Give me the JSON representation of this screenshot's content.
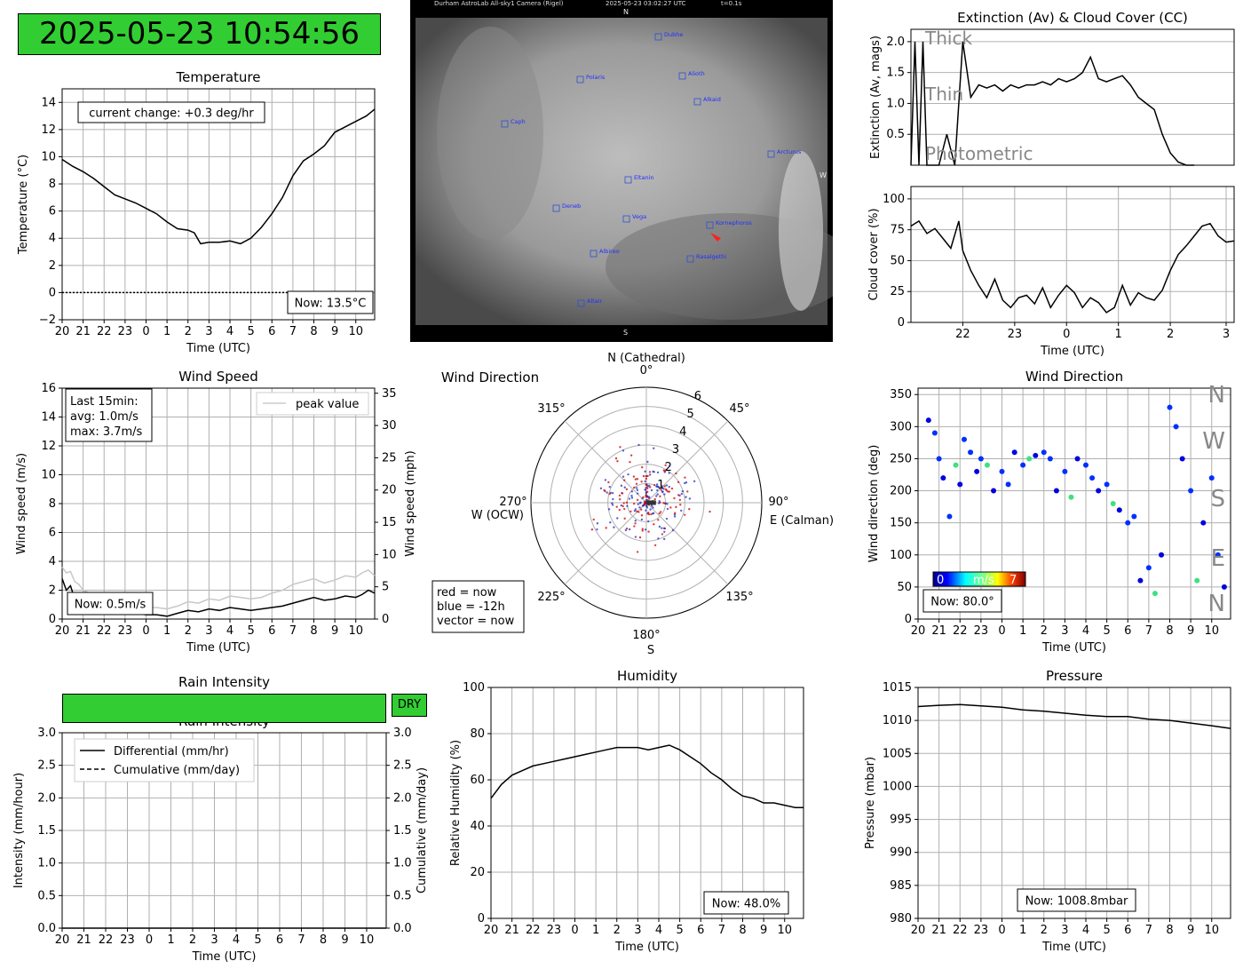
{
  "clock": {
    "text": "2025-05-23 10:54:56"
  },
  "colors": {
    "dry": "#32cd32",
    "now": "#cc0000",
    "past": "#2030c0"
  },
  "sky": {
    "header_left": "Durham AstroLab All-sky1 Camera (Rigel)",
    "header_mid": "2025-05-23 03:02:27 UTC",
    "header_right": "t=0.1s",
    "dir_n": "N",
    "dir_s": "S",
    "dir_w": "W",
    "stars": [
      "Dubhe",
      "Polaris",
      "Alioth",
      "Alkaid",
      "Caph",
      "Arcturus",
      "Eltanin",
      "Deneb",
      "Vega",
      "Kornephoros",
      "Albireo",
      "Rasalgethi",
      "Altair"
    ]
  },
  "rain": {
    "status": "DRY"
  },
  "chart_data": [
    {
      "id": "temperature",
      "type": "line",
      "title": "Temperature",
      "xlabel": "Time (UTC)",
      "ylabel": "Temperature (°C)",
      "xticks": [
        "20",
        "21",
        "22",
        "23",
        "0",
        "1",
        "2",
        "3",
        "4",
        "5",
        "6",
        "7",
        "8",
        "9",
        "10"
      ],
      "yticks": [
        "−2",
        "0",
        "2",
        "4",
        "6",
        "8",
        "10",
        "12",
        "14"
      ],
      "ylim": [
        -2,
        15
      ],
      "x": [
        0,
        0.5,
        1,
        1.5,
        2,
        2.5,
        3,
        3.5,
        4,
        4.5,
        5,
        5.5,
        6,
        6.3,
        6.6,
        7,
        7.5,
        8,
        8.5,
        9,
        9.5,
        10,
        10.5,
        11,
        11.5,
        12,
        12.5,
        13,
        13.5,
        14,
        14.5,
        14.9
      ],
      "values": [
        9.8,
        9.3,
        8.9,
        8.4,
        7.8,
        7.2,
        6.9,
        6.6,
        6.2,
        5.8,
        5.2,
        4.7,
        4.6,
        4.4,
        3.6,
        3.7,
        3.7,
        3.8,
        3.6,
        4.0,
        4.8,
        5.8,
        7.0,
        8.6,
        9.7,
        10.2,
        10.8,
        11.8,
        12.2,
        12.6,
        13.0,
        13.5
      ],
      "annotation": "current change: +0.3 deg/hr",
      "now_label": "Now: 13.5°C"
    },
    {
      "id": "extinction",
      "type": "line",
      "title": "Extinction (Av) & Cloud Cover (CC)",
      "ylabel": "Extinction (Av, mags)",
      "yticks": [
        "0.5",
        "1.0",
        "1.5",
        "2.0"
      ],
      "ylim": [
        0,
        2.2
      ],
      "region_labels": [
        "Thick",
        "Thin",
        "Photometric"
      ],
      "x": [
        0,
        0.1,
        0.2,
        0.3,
        0.4,
        0.5,
        0.7,
        0.9,
        1.1,
        1.3,
        1.5,
        1.7,
        1.9,
        2.1,
        2.3,
        2.5,
        2.7,
        2.9,
        3.1,
        3.3,
        3.5,
        3.7,
        3.9,
        4.1,
        4.3,
        4.5,
        4.7,
        4.9,
        5.1,
        5.3,
        5.5,
        5.7,
        5.9,
        6.1,
        6.3,
        6.5,
        6.7,
        6.9,
        7.1
      ],
      "values": [
        0,
        2.0,
        0,
        2.0,
        0,
        0,
        0,
        0.5,
        0,
        2.0,
        1.1,
        1.3,
        1.25,
        1.3,
        1.2,
        1.3,
        1.25,
        1.3,
        1.3,
        1.35,
        1.3,
        1.4,
        1.35,
        1.4,
        1.5,
        1.75,
        1.4,
        1.35,
        1.4,
        1.45,
        1.3,
        1.1,
        1.0,
        0.9,
        0.5,
        0.2,
        0.05,
        0,
        0
      ]
    },
    {
      "id": "cloud",
      "type": "line",
      "xlabel": "Time (UTC)",
      "ylabel": "Cloud cover (%)",
      "xticks": [
        "22",
        "23",
        "0",
        "1",
        "2",
        "3"
      ],
      "yticks": [
        "0",
        "25",
        "50",
        "75",
        "100"
      ],
      "ylim": [
        0,
        110
      ],
      "x": [
        0,
        0.2,
        0.4,
        0.6,
        0.8,
        1.0,
        1.2,
        1.3,
        1.5,
        1.7,
        1.9,
        2.1,
        2.3,
        2.5,
        2.7,
        2.9,
        3.1,
        3.3,
        3.5,
        3.7,
        3.9,
        4.1,
        4.3,
        4.5,
        4.7,
        4.9,
        5.1,
        5.3,
        5.5,
        5.7,
        5.9,
        6.1,
        6.3,
        6.5,
        6.7,
        6.9,
        7.1,
        7.3,
        7.5,
        7.7,
        7.9,
        8.1
      ],
      "values": [
        78,
        82,
        72,
        76,
        68,
        60,
        82,
        58,
        42,
        30,
        20,
        35,
        18,
        12,
        20,
        22,
        15,
        28,
        12,
        22,
        30,
        24,
        12,
        20,
        16,
        8,
        12,
        30,
        14,
        24,
        20,
        18,
        26,
        42,
        55,
        62,
        70,
        78,
        80,
        70,
        65,
        66
      ]
    },
    {
      "id": "wind_speed",
      "type": "line",
      "title": "Wind Speed",
      "xlabel": "Time (UTC)",
      "ylabel": "Wind speed (m/s)",
      "ylabel_right": "Wind speed (mph)",
      "xticks": [
        "20",
        "21",
        "22",
        "23",
        "0",
        "1",
        "2",
        "3",
        "4",
        "5",
        "6",
        "7",
        "8",
        "9",
        "10"
      ],
      "yticks": [
        "0",
        "2",
        "4",
        "6",
        "8",
        "10",
        "12",
        "14",
        "16"
      ],
      "yticks_right": [
        "0",
        "5",
        "10",
        "15",
        "20",
        "25",
        "30",
        "35"
      ],
      "ylim": [
        0,
        16
      ],
      "legend": "peak value",
      "stats": [
        "Last 15min:",
        "avg: 1.0m/s",
        "max: 3.7m/s"
      ],
      "now_label": "Now: 0.5m/s",
      "x": [
        0,
        0.2,
        0.4,
        0.6,
        0.8,
        1,
        1.3,
        1.6,
        2,
        2.5,
        3,
        3.5,
        4,
        4.5,
        5,
        5.5,
        6,
        6.5,
        7,
        7.5,
        8,
        8.5,
        9,
        9.5,
        10,
        10.5,
        11,
        11.5,
        12,
        12.5,
        13,
        13.5,
        14,
        14.3,
        14.6,
        14.9
      ],
      "values": [
        2.8,
        2.0,
        2.3,
        1.4,
        1.8,
        1.2,
        1.0,
        0.9,
        0.6,
        0.5,
        0.5,
        0.4,
        0.3,
        0.3,
        0.2,
        0.4,
        0.6,
        0.5,
        0.7,
        0.6,
        0.8,
        0.7,
        0.6,
        0.7,
        0.8,
        0.9,
        1.1,
        1.3,
        1.5,
        1.3,
        1.4,
        1.6,
        1.5,
        1.7,
        2.0,
        1.8
      ],
      "peak": [
        3.6,
        3.2,
        3.3,
        2.6,
        2.4,
        2.0,
        1.8,
        1.6,
        1.2,
        1.0,
        1.0,
        0.9,
        0.8,
        0.8,
        0.7,
        0.9,
        1.2,
        1.1,
        1.4,
        1.3,
        1.6,
        1.5,
        1.4,
        1.5,
        1.8,
        2.0,
        2.4,
        2.6,
        2.8,
        2.5,
        2.7,
        3.0,
        2.9,
        3.2,
        3.4,
        3.0
      ]
    },
    {
      "id": "wind_polar",
      "type": "scatter",
      "title": "Wind Direction",
      "angle_labels": [
        "0°",
        "45°",
        "90°",
        "135°",
        "180°",
        "225°",
        "270°",
        "315°"
      ],
      "radial_ticks": [
        "1",
        "2",
        "3",
        "4",
        "5",
        "6"
      ],
      "rlim": [
        0,
        6
      ],
      "compass": {
        "n": "N (Cathedral)",
        "e": "E (Calman)",
        "w": "W (OCW)",
        "s": "S"
      },
      "legend": [
        "red = now",
        "blue = -12h",
        "vector = now"
      ],
      "vector": {
        "dir": 90,
        "speed": 0.5
      }
    },
    {
      "id": "wind_dir",
      "type": "scatter",
      "title": "Wind Direction",
      "xlabel": "Time (UTC)",
      "ylabel": "Wind direction (deg)",
      "xticks": [
        "20",
        "21",
        "22",
        "23",
        "0",
        "1",
        "2",
        "3",
        "4",
        "5",
        "6",
        "7",
        "8",
        "9",
        "10"
      ],
      "yticks": [
        "0",
        "50",
        "100",
        "150",
        "200",
        "250",
        "300",
        "350"
      ],
      "ylim": [
        0,
        360
      ],
      "compass_labels": [
        "N",
        "W",
        "S",
        "E",
        "N"
      ],
      "colorbar": {
        "min": "0",
        "unit": "m/s",
        "max": "7"
      },
      "now_label": "Now: 80.0°",
      "x": [
        0.5,
        0.8,
        1.0,
        1.2,
        1.5,
        1.8,
        2.0,
        2.2,
        2.5,
        2.8,
        3.0,
        3.3,
        3.6,
        4.0,
        4.3,
        4.6,
        5.0,
        5.3,
        5.6,
        6.0,
        6.3,
        6.6,
        7.0,
        7.3,
        7.6,
        8.0,
        8.3,
        8.6,
        9.0,
        9.3,
        9.6,
        10.0,
        10.3,
        10.6,
        11.0,
        11.3,
        11.6,
        12.0,
        12.3,
        12.6,
        13.0,
        13.3,
        13.6,
        14.0,
        14.3,
        14.6
      ],
      "values": [
        310,
        290,
        250,
        220,
        160,
        240,
        210,
        280,
        260,
        230,
        250,
        240,
        200,
        230,
        210,
        260,
        240,
        250,
        255,
        260,
        250,
        200,
        230,
        190,
        250,
        240,
        220,
        200,
        210,
        180,
        170,
        150,
        160,
        60,
        80,
        40,
        100,
        330,
        300,
        250,
        200,
        60,
        150,
        220,
        100,
        50
      ]
    },
    {
      "id": "rain",
      "type": "line",
      "title": "Rain Intensity",
      "xlabel": "Time (UTC)",
      "ylabel": "Intensity (mm/hour)",
      "ylabel_right": "Cumulative (mm/day)",
      "xticks": [
        "20",
        "21",
        "22",
        "23",
        "0",
        "1",
        "2",
        "3",
        "4",
        "5",
        "6",
        "7",
        "8",
        "9",
        "10"
      ],
      "yticks": [
        "0.0",
        "0.5",
        "1.0",
        "1.5",
        "2.0",
        "2.5",
        "3.0"
      ],
      "ylim": [
        0,
        3
      ],
      "legend": [
        "Differential (mm/hr)",
        "Cumulative (mm/day)"
      ],
      "x": [
        0,
        14.9
      ],
      "values": [
        0,
        0
      ]
    },
    {
      "id": "humidity",
      "type": "line",
      "title": "Humidity",
      "xlabel": "Time (UTC)",
      "ylabel": "Relative Humidity (%)",
      "xticks": [
        "20",
        "21",
        "22",
        "23",
        "0",
        "1",
        "2",
        "3",
        "4",
        "5",
        "6",
        "7",
        "8",
        "9",
        "10"
      ],
      "yticks": [
        "0",
        "20",
        "40",
        "60",
        "80",
        "100"
      ],
      "ylim": [
        0,
        100
      ],
      "now_label": "Now: 48.0%",
      "x": [
        0,
        0.5,
        1,
        1.5,
        2,
        2.5,
        3,
        3.5,
        4,
        4.5,
        5,
        5.5,
        6,
        6.5,
        7,
        7.5,
        8,
        8.5,
        9,
        9.5,
        10,
        10.5,
        11,
        11.5,
        12,
        12.5,
        13,
        13.5,
        14,
        14.5,
        14.9
      ],
      "values": [
        52,
        58,
        62,
        64,
        66,
        67,
        68,
        69,
        70,
        71,
        72,
        73,
        74,
        74,
        74,
        73,
        74,
        75,
        73,
        70,
        67,
        63,
        60,
        56,
        53,
        52,
        50,
        50,
        49,
        48,
        48
      ]
    },
    {
      "id": "pressure",
      "type": "line",
      "title": "Pressure",
      "xlabel": "Time (UTC)",
      "ylabel": "Pressure (mbar)",
      "xticks": [
        "20",
        "21",
        "22",
        "23",
        "0",
        "1",
        "2",
        "3",
        "4",
        "5",
        "6",
        "7",
        "8",
        "9",
        "10"
      ],
      "yticks": [
        "980",
        "985",
        "990",
        "995",
        "1000",
        "1005",
        "1010",
        "1015"
      ],
      "ylim": [
        980,
        1015
      ],
      "now_label": "Now: 1008.8mbar",
      "x": [
        0,
        1,
        2,
        3,
        4,
        5,
        6,
        7,
        8,
        9,
        10,
        11,
        12,
        13,
        14,
        14.9
      ],
      "values": [
        1012.1,
        1012.3,
        1012.4,
        1012.2,
        1012.0,
        1011.6,
        1011.4,
        1011.1,
        1010.8,
        1010.6,
        1010.6,
        1010.2,
        1010.0,
        1009.6,
        1009.2,
        1008.8
      ]
    }
  ]
}
